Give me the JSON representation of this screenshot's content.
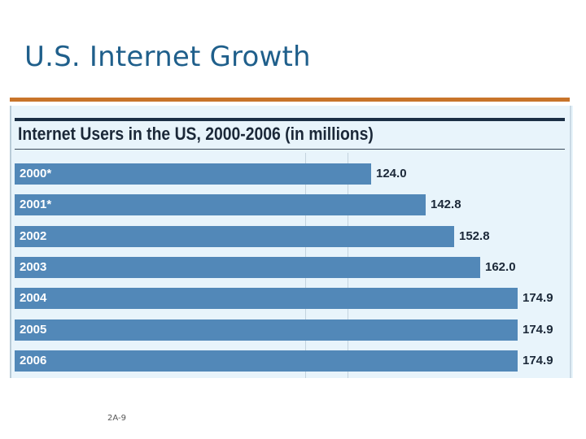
{
  "slide": {
    "title": "U.S. Internet Growth",
    "number": "2A-9"
  },
  "colors": {
    "title": "#1f5f8b",
    "accent_rule": "#c8742a",
    "panel_bg": "#e8f4fb",
    "bar": "#5288b8",
    "text_dark": "#1b2838"
  },
  "chart_data": {
    "type": "bar",
    "orientation": "horizontal",
    "title": "Internet Users in the US, 2000-2006 (in millions)",
    "categories": [
      "2000*",
      "2001*",
      "2002",
      "2003",
      "2004",
      "2005",
      "2006"
    ],
    "values": [
      124.0,
      142.8,
      152.8,
      162.0,
      174.9,
      174.9,
      174.9
    ],
    "value_labels": [
      "124.0",
      "142.8",
      "152.8",
      "162.0",
      "174.9",
      "174.9",
      "174.9"
    ],
    "xlabel": "",
    "ylabel": "",
    "xlim": [
      0,
      174.9
    ],
    "grid": true,
    "legend": "none"
  }
}
